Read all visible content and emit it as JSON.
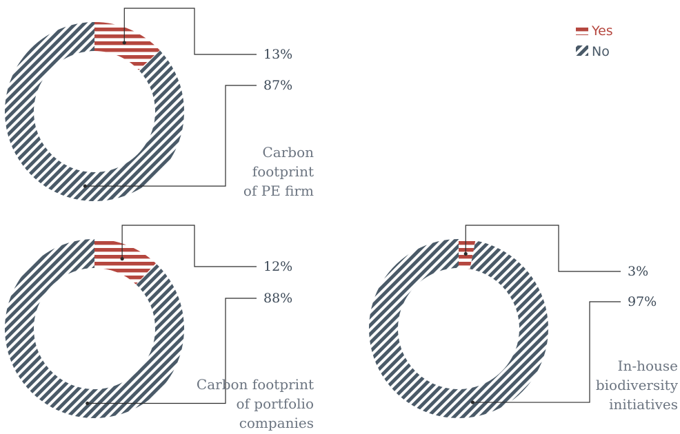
{
  "colors": {
    "yes": "#b5473f",
    "no": "#4a5a68",
    "leader": "#2b2b2b",
    "title": "#6b7480",
    "label": "#3d4a58"
  },
  "legend": {
    "items": [
      {
        "label": "Yes",
        "color": "#b5473f",
        "pattern": "horizontal-stripes"
      },
      {
        "label": "No",
        "color": "#4a5a68",
        "pattern": "diagonal-stripes"
      }
    ]
  },
  "chart_data": [
    {
      "type": "pie",
      "variant": "donut",
      "title_lines": [
        "Carbon",
        "footprint",
        "of PE firm"
      ],
      "slices": [
        {
          "label": "Yes",
          "value": 13,
          "display": "13%"
        },
        {
          "label": "No",
          "value": 87,
          "display": "87%"
        }
      ]
    },
    {
      "type": "pie",
      "variant": "donut",
      "title_lines": [
        "Carbon footprint",
        "of portfolio",
        "companies"
      ],
      "slices": [
        {
          "label": "Yes",
          "value": 12,
          "display": "12%"
        },
        {
          "label": "No",
          "value": 88,
          "display": "88%"
        }
      ]
    },
    {
      "type": "pie",
      "variant": "donut",
      "title_lines": [
        "In-house",
        "biodiversity",
        "initiatives"
      ],
      "slices": [
        {
          "label": "Yes",
          "value": 3,
          "display": "3%"
        },
        {
          "label": "No",
          "value": 97,
          "display": "97%"
        }
      ]
    }
  ]
}
